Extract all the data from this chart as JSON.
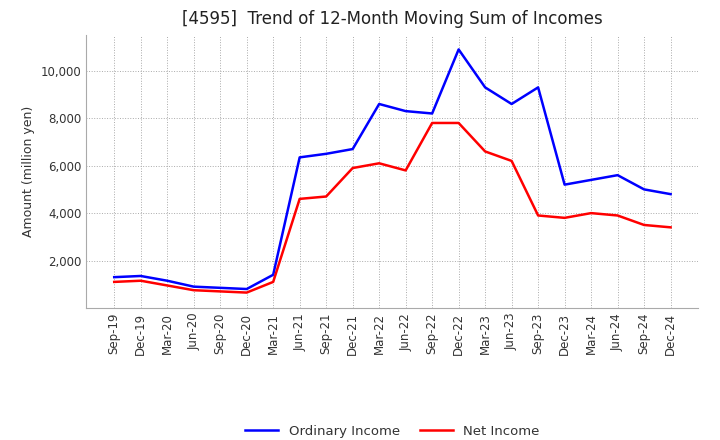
{
  "title": "[4595]  Trend of 12-Month Moving Sum of Incomes",
  "ylabel": "Amount (million yen)",
  "x_labels": [
    "Sep-19",
    "Dec-19",
    "Mar-20",
    "Jun-20",
    "Sep-20",
    "Dec-20",
    "Mar-21",
    "Jun-21",
    "Sep-21",
    "Dec-21",
    "Mar-22",
    "Jun-22",
    "Sep-22",
    "Dec-22",
    "Mar-23",
    "Jun-23",
    "Sep-23",
    "Dec-23",
    "Mar-24",
    "Jun-24",
    "Sep-24",
    "Dec-24"
  ],
  "ordinary_income": [
    1300,
    1350,
    1150,
    900,
    850,
    800,
    1400,
    6350,
    6500,
    6700,
    8600,
    8300,
    8200,
    10900,
    9300,
    8600,
    9300,
    5200,
    5400,
    5600,
    5000,
    4800
  ],
  "net_income": [
    1100,
    1150,
    950,
    750,
    700,
    650,
    1100,
    4600,
    4700,
    5900,
    6100,
    5800,
    7800,
    7800,
    6600,
    6200,
    3900,
    3800,
    4000,
    3900,
    3500,
    3400
  ],
  "ordinary_income_color": "#0000FF",
  "net_income_color": "#FF0000",
  "ylim": [
    0,
    11500
  ],
  "yticks": [
    2000,
    4000,
    6000,
    8000,
    10000
  ],
  "background_color": "#FFFFFF",
  "plot_bg_color": "#FFFFFF",
  "grid_color": "#AAAAAA",
  "title_fontsize": 12,
  "axis_label_fontsize": 9,
  "tick_fontsize": 8.5,
  "legend_fontsize": 9.5,
  "line_width": 1.8
}
